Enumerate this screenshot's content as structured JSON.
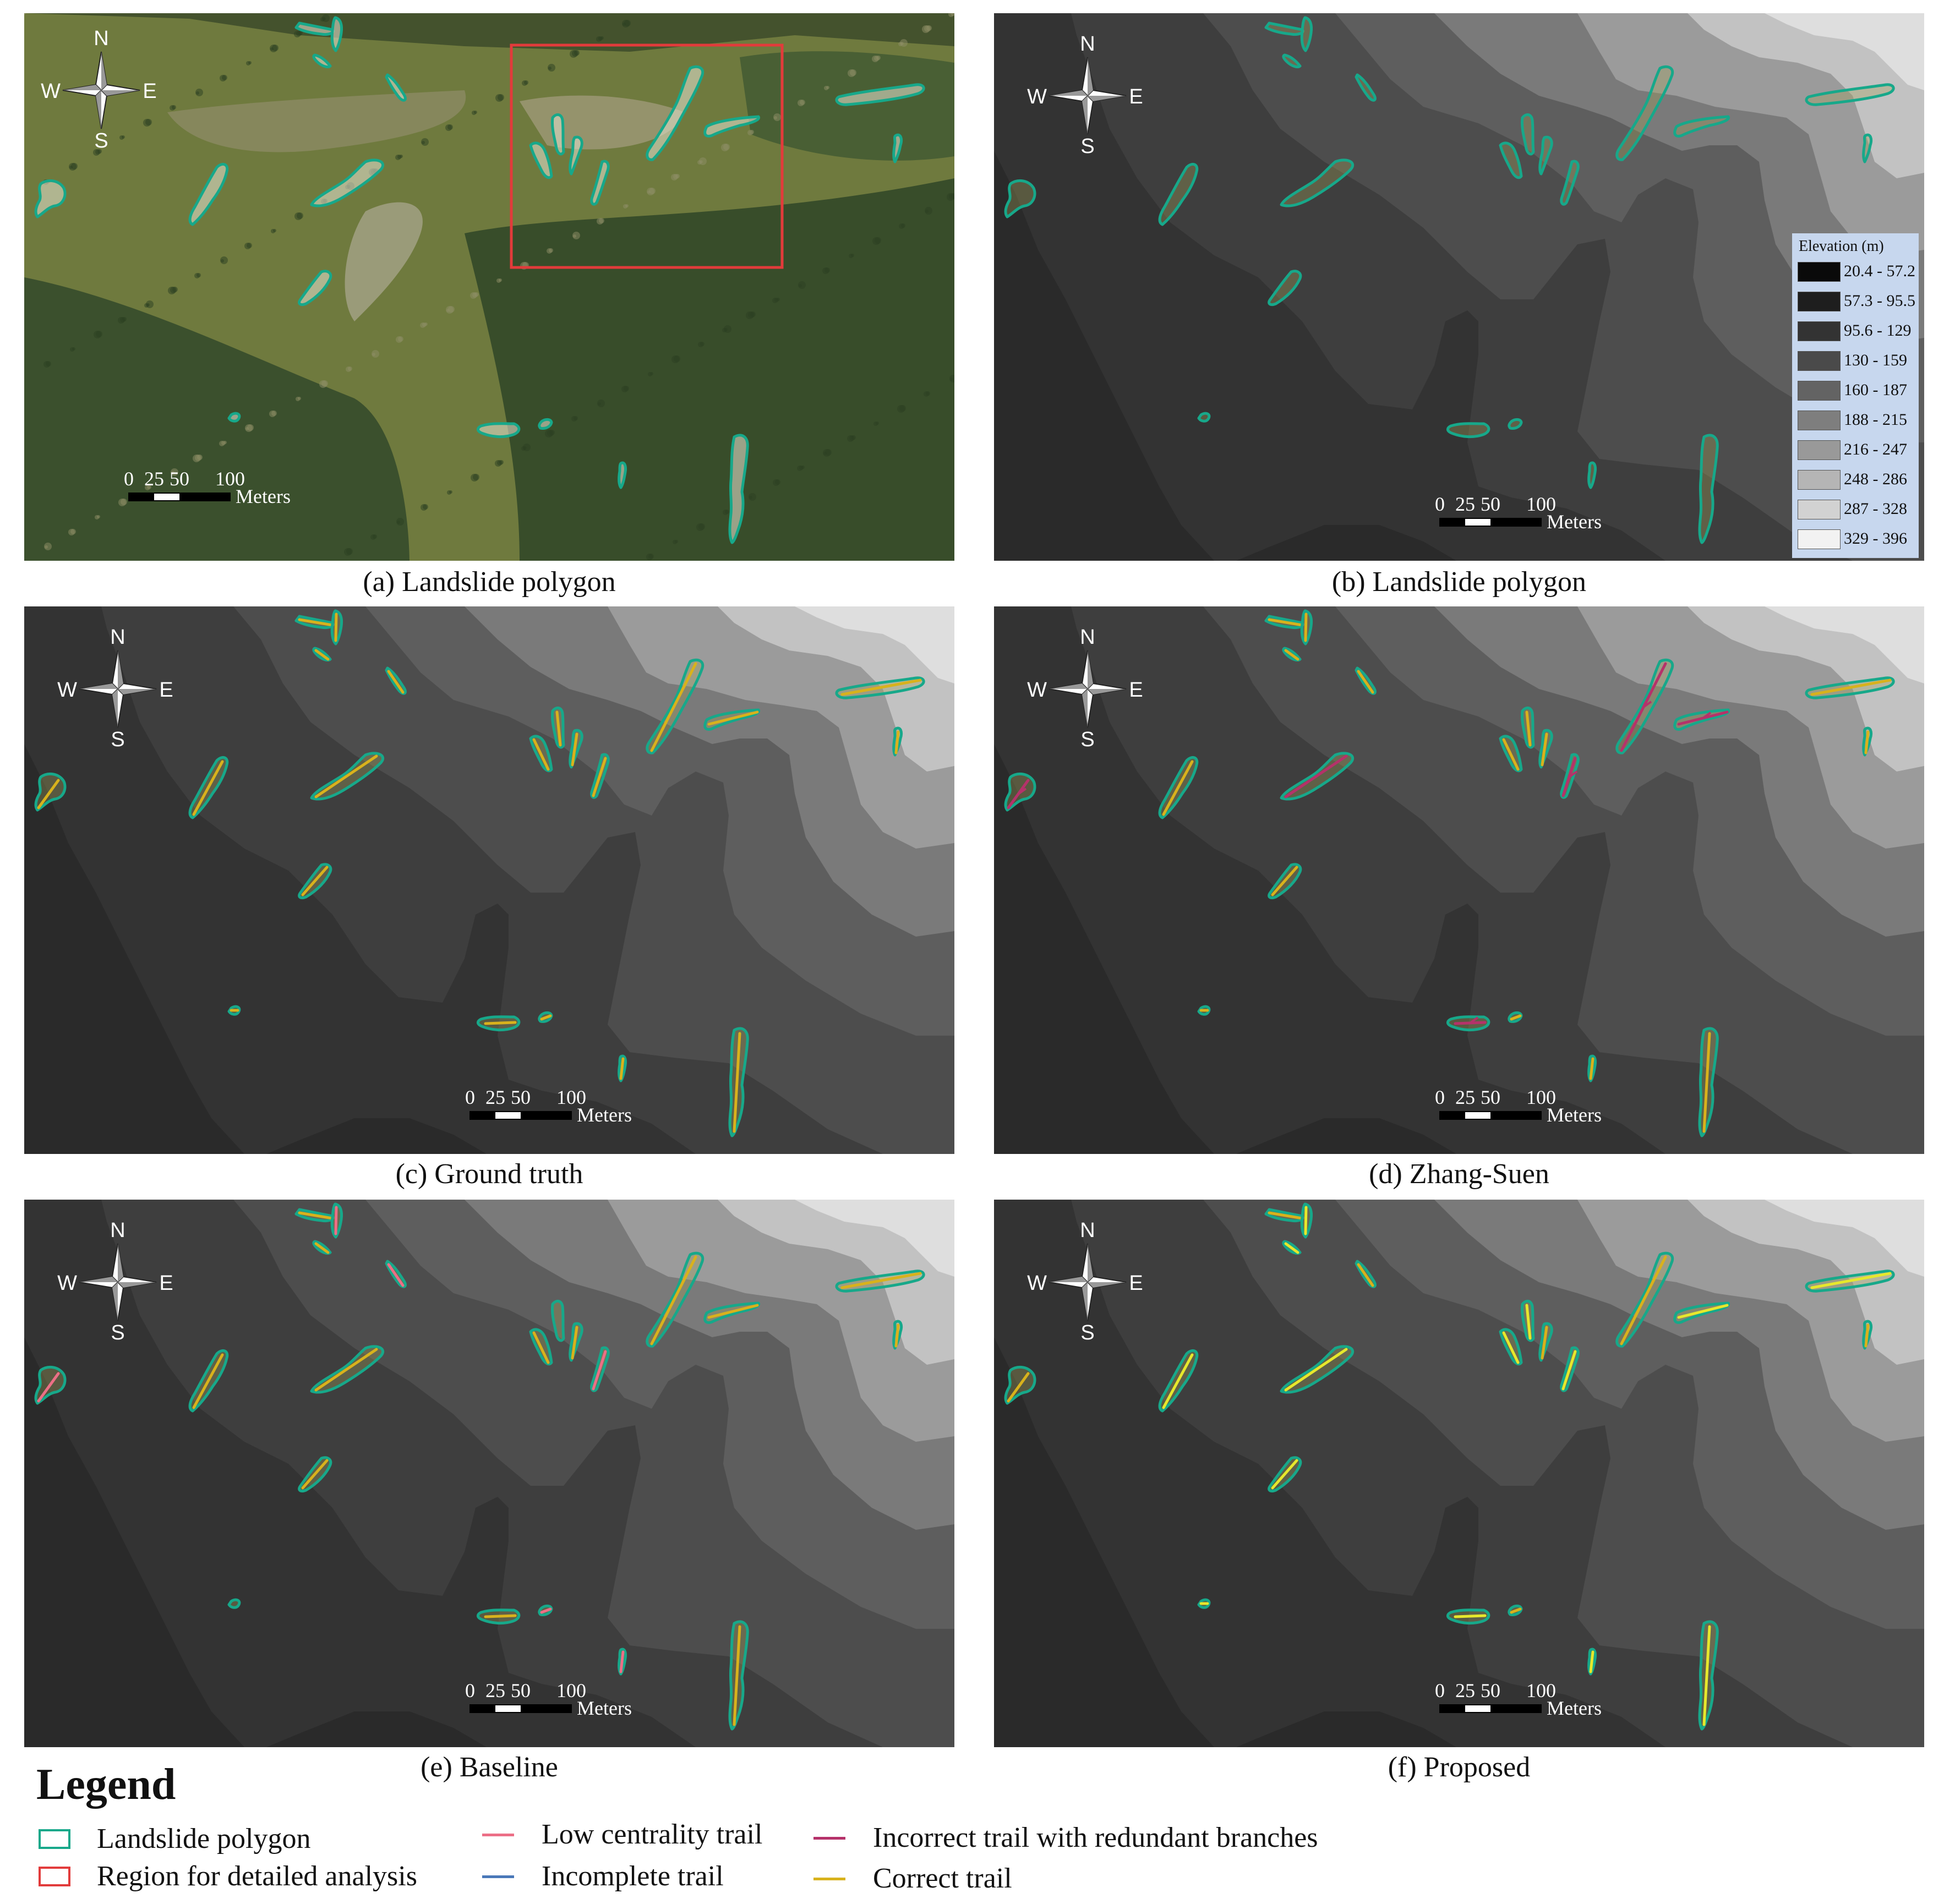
{
  "panels": [
    {
      "id": "a",
      "caption": "(a) Landslide polygon",
      "base": "aerial",
      "trail": null,
      "showRegion": true,
      "showElevLegend": false
    },
    {
      "id": "b",
      "caption": "(b) Landslide polygon",
      "base": "dem",
      "trail": null,
      "showRegion": false,
      "showElevLegend": true
    },
    {
      "id": "c",
      "caption": "(c) Ground truth",
      "base": "dem",
      "trail": "ground-truth",
      "showRegion": false,
      "showElevLegend": false
    },
    {
      "id": "d",
      "caption": "(d) Zhang-Suen",
      "base": "dem",
      "trail": "zhang-suen",
      "showRegion": false,
      "showElevLegend": false
    },
    {
      "id": "e",
      "caption": "(e) Baseline",
      "base": "dem",
      "trail": "baseline",
      "showRegion": false,
      "showElevLegend": false
    },
    {
      "id": "f",
      "caption": "(f) Proposed",
      "base": "dem",
      "trail": "proposed",
      "showRegion": false,
      "showElevLegend": false
    }
  ],
  "compass": {
    "n": "N",
    "s": "S",
    "e": "E",
    "w": "W"
  },
  "scale_bar": {
    "ticks": [
      "0",
      "25",
      "50",
      "100"
    ],
    "unit": "Meters"
  },
  "elevation_legend": {
    "title": "Elevation (m)",
    "classes": [
      {
        "label": "20.4 - 57.2",
        "color": "#0a0a0a"
      },
      {
        "label": "57.3 - 95.5",
        "color": "#1e1e1e"
      },
      {
        "label": "95.6 - 129",
        "color": "#333333"
      },
      {
        "label": "130 - 159",
        "color": "#4a4a4a"
      },
      {
        "label": "160 - 187",
        "color": "#636363"
      },
      {
        "label": "188 - 215",
        "color": "#7e7e7e"
      },
      {
        "label": "216 - 247",
        "color": "#999999"
      },
      {
        "label": "248 - 286",
        "color": "#b5b5b5"
      },
      {
        "label": "287 - 328",
        "color": "#d2d2d2"
      },
      {
        "label": "329 - 396",
        "color": "#f2f2f2"
      }
    ]
  },
  "legend": {
    "title": "Legend",
    "items": [
      {
        "label": "Landslide polygon",
        "kind": "box",
        "color": "#17a88a"
      },
      {
        "label": "Region for detailed analysis",
        "kind": "box",
        "color": "#e23b3b"
      },
      {
        "label": "Low centrality trail",
        "kind": "line",
        "color": "#ec6f86"
      },
      {
        "label": "Incomplete trail",
        "kind": "line",
        "color": "#4a78b8"
      },
      {
        "label": "Incorrect trail with redundant branches",
        "kind": "line",
        "color": "#b5326a"
      },
      {
        "label": "Correct trail",
        "kind": "line",
        "color": "#d8b21c"
      }
    ]
  },
  "colors": {
    "polygon": "#17a88a",
    "region": "#e23b3b",
    "correct": "#d8b21c",
    "proposed": "#e6e82c",
    "low_centrality": "#ec6f86",
    "redundant": "#b5326a",
    "incomplete": "#4a78b8"
  }
}
